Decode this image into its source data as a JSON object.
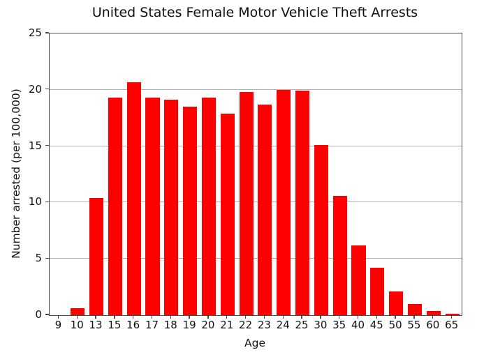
{
  "title": "United States Female Motor Vehicle Theft Arrests",
  "chart_data": {
    "type": "bar",
    "title": "United States Female Motor Vehicle Theft Arrests",
    "xlabel": "Age",
    "ylabel": "Number arrested (per 100,000)",
    "categories": [
      "9",
      "10",
      "13",
      "15",
      "16",
      "17",
      "18",
      "19",
      "20",
      "21",
      "22",
      "23",
      "24",
      "25",
      "30",
      "35",
      "40",
      "45",
      "50",
      "55",
      "60",
      "65"
    ],
    "values": [
      0.0,
      0.6,
      10.4,
      19.3,
      20.7,
      19.3,
      19.1,
      18.5,
      19.3,
      17.9,
      19.8,
      18.7,
      20.0,
      19.9,
      15.1,
      10.6,
      6.2,
      4.2,
      2.1,
      1.0,
      0.4,
      0.1
    ],
    "ylim": [
      0,
      25
    ],
    "yticks": [
      0,
      5,
      10,
      15,
      20,
      25
    ],
    "bar_color": "#ff0000",
    "grid": true,
    "grid_color": "#b0b0b0",
    "legend": "none"
  }
}
